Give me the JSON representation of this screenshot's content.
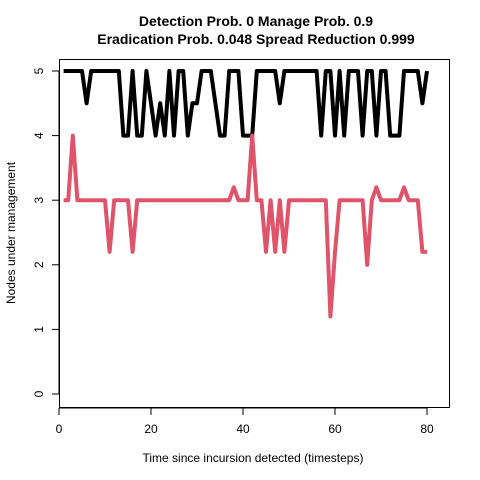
{
  "chart_data": {
    "type": "line",
    "title_line1": "Detection Prob. 0 Manage Prob. 0.9",
    "title_line2": "Eradication Prob. 0.048 Spread Reduction 0.999",
    "xlabel": "Time since incursion detected (timesteps)",
    "ylabel": "Nodes under management",
    "xlim": [
      0,
      80
    ],
    "ylim": [
      0,
      5
    ],
    "x_ticks": [
      0,
      20,
      40,
      60,
      80
    ],
    "y_ticks": [
      0,
      1,
      2,
      3,
      4,
      5
    ],
    "grid": false,
    "legend": "none",
    "x": [
      1,
      2,
      3,
      4,
      5,
      6,
      7,
      8,
      9,
      10,
      11,
      12,
      13,
      14,
      15,
      16,
      17,
      18,
      19,
      20,
      21,
      22,
      23,
      24,
      25,
      26,
      27,
      28,
      29,
      30,
      31,
      32,
      33,
      34,
      35,
      36,
      37,
      38,
      39,
      40,
      41,
      42,
      43,
      44,
      45,
      46,
      47,
      48,
      49,
      50,
      51,
      52,
      53,
      54,
      55,
      56,
      57,
      58,
      59,
      60,
      61,
      62,
      63,
      64,
      65,
      66,
      67,
      68,
      69,
      70,
      71,
      72,
      73,
      74,
      75,
      76,
      77,
      78,
      79,
      80
    ],
    "series": [
      {
        "color": "#000000",
        "values": [
          5,
          5,
          5,
          5,
          5,
          4.5,
          5,
          5,
          5,
          5,
          5,
          5,
          5,
          4,
          4,
          5,
          4,
          4,
          5,
          4.5,
          4,
          4.5,
          4,
          5,
          4,
          5,
          5,
          4,
          4.5,
          4.5,
          5,
          5,
          5,
          4.5,
          4,
          4,
          5,
          5,
          5,
          4,
          4,
          4,
          5,
          5,
          5,
          5,
          5,
          4.5,
          5,
          5,
          5,
          5,
          5,
          5,
          5,
          5,
          4,
          5,
          5,
          4,
          5,
          4,
          5,
          5,
          5,
          4,
          5,
          5,
          4,
          5,
          5,
          4,
          4,
          4,
          5,
          5,
          5,
          5,
          4.5,
          5
        ]
      },
      {
        "color": "#DF536B",
        "values": [
          3,
          3,
          4,
          3,
          3,
          3,
          3,
          3,
          3,
          3,
          2.2,
          3,
          3,
          3,
          3,
          2.2,
          3,
          3,
          3,
          3,
          3,
          3,
          3,
          3,
          3,
          3,
          3,
          3,
          3,
          3,
          3,
          3,
          3,
          3,
          3,
          3,
          3,
          3.2,
          3,
          3,
          3,
          4,
          3,
          3,
          2.2,
          3,
          2.2,
          3,
          2.2,
          3,
          3,
          3,
          3,
          3,
          3,
          3,
          3,
          3,
          1.2,
          2.2,
          3,
          3,
          3,
          3,
          3,
          3,
          2,
          3,
          3.2,
          3,
          3,
          3,
          3,
          3,
          3.2,
          3,
          3,
          3,
          2.2,
          2.2
        ]
      }
    ]
  }
}
